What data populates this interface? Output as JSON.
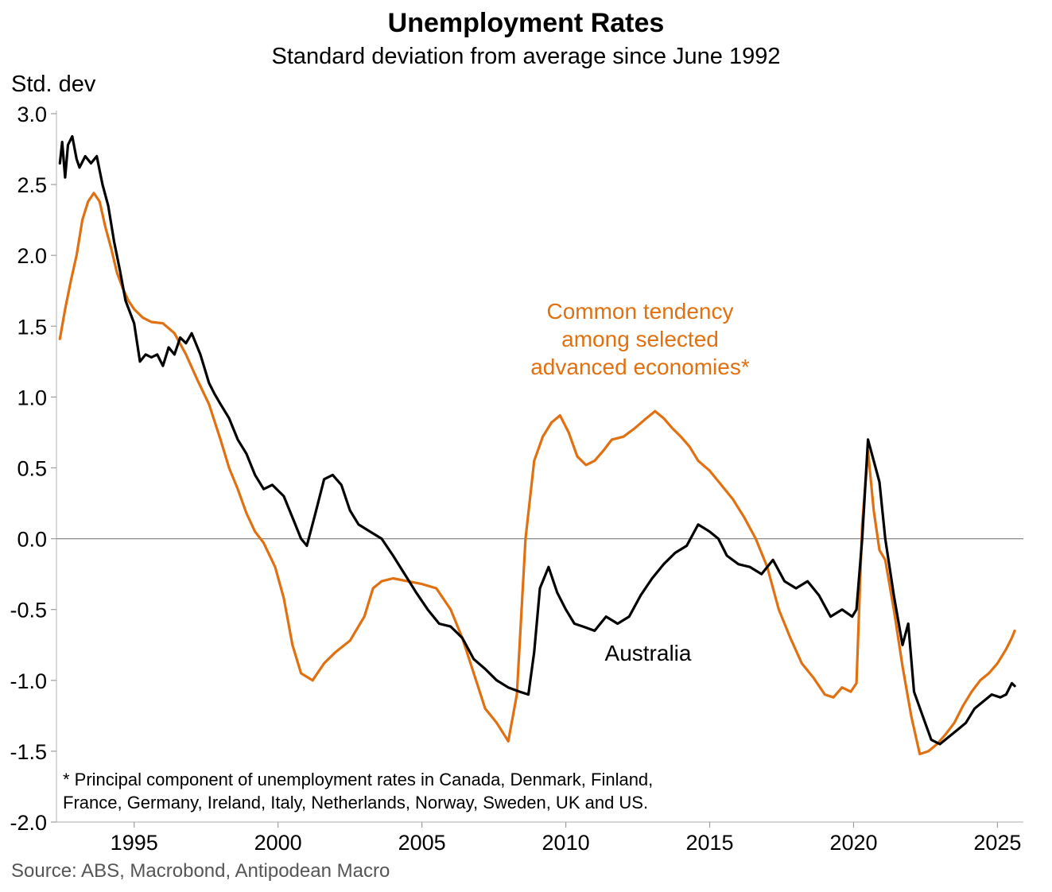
{
  "chart_data": {
    "type": "line",
    "title": "Unemployment Rates",
    "subtitle": "Standard deviation from average since June 1992",
    "ylabel": "Std. dev",
    "xlabel": "",
    "xlim": [
      1992.3,
      2025.9
    ],
    "ylim": [
      -2.0,
      3.0
    ],
    "yticks": [
      3.0,
      2.5,
      2.0,
      1.5,
      1.0,
      0.5,
      0.0,
      -0.5,
      -1.0,
      -1.5,
      -2.0
    ],
    "ytick_labels": [
      "3.0",
      "2.5",
      "2.0",
      "1.5",
      "1.0",
      "0.5",
      "0.0",
      "-0.5",
      "-1.0",
      "-1.5",
      "-2.0"
    ],
    "xticks": [
      1995,
      2000,
      2005,
      2010,
      2015,
      2020,
      2025
    ],
    "xtick_labels": [
      "1995",
      "2000",
      "2005",
      "2010",
      "2015",
      "2020",
      "2025"
    ],
    "zero_line": true,
    "series": [
      {
        "name": "Common tendency among selected advanced economies*",
        "label_lines": [
          "Common tendency",
          "among selected",
          "advanced economies*"
        ],
        "color": "#e07010",
        "x": [
          1992.42,
          1992.6,
          1992.8,
          1993.0,
          1993.2,
          1993.4,
          1993.6,
          1993.8,
          1994.0,
          1994.2,
          1994.4,
          1994.6,
          1994.8,
          1995.0,
          1995.3,
          1995.6,
          1996.0,
          1996.4,
          1996.8,
          1997.2,
          1997.6,
          1998.0,
          1998.3,
          1998.6,
          1998.9,
          1999.2,
          1999.5,
          1999.9,
          2000.2,
          2000.5,
          2000.8,
          2001.2,
          2001.6,
          2002.0,
          2002.5,
          2003.0,
          2003.3,
          2003.6,
          2004.0,
          2004.5,
          2005.0,
          2005.5,
          2006.0,
          2006.4,
          2006.8,
          2007.2,
          2007.6,
          2008.0,
          2008.3,
          2008.6,
          2008.9,
          2009.2,
          2009.5,
          2009.8,
          2010.1,
          2010.4,
          2010.7,
          2011.0,
          2011.3,
          2011.6,
          2012.0,
          2012.4,
          2012.8,
          2013.1,
          2013.4,
          2013.7,
          2014.0,
          2014.3,
          2014.6,
          2015.0,
          2015.4,
          2015.8,
          2016.2,
          2016.6,
          2017.0,
          2017.4,
          2017.8,
          2018.2,
          2018.6,
          2019.0,
          2019.3,
          2019.6,
          2019.9,
          2020.1,
          2020.3,
          2020.5,
          2020.7,
          2020.9,
          2021.1,
          2021.4,
          2021.7,
          2022.0,
          2022.3,
          2022.6,
          2022.9,
          2023.2,
          2023.5,
          2023.8,
          2024.1,
          2024.4,
          2024.7,
          2025.0,
          2025.3,
          2025.5,
          2025.6
        ],
        "values": [
          1.41,
          1.62,
          1.82,
          2.0,
          2.25,
          2.38,
          2.44,
          2.38,
          2.2,
          2.05,
          1.88,
          1.77,
          1.68,
          1.62,
          1.56,
          1.53,
          1.52,
          1.45,
          1.3,
          1.12,
          0.95,
          0.7,
          0.5,
          0.35,
          0.18,
          0.05,
          -0.03,
          -0.2,
          -0.42,
          -0.75,
          -0.95,
          -1.0,
          -0.88,
          -0.8,
          -0.72,
          -0.55,
          -0.35,
          -0.3,
          -0.28,
          -0.3,
          -0.32,
          -0.35,
          -0.5,
          -0.7,
          -0.95,
          -1.2,
          -1.3,
          -1.43,
          -1.1,
          0.0,
          0.55,
          0.72,
          0.82,
          0.87,
          0.75,
          0.58,
          0.52,
          0.55,
          0.62,
          0.7,
          0.72,
          0.78,
          0.85,
          0.9,
          0.85,
          0.78,
          0.72,
          0.65,
          0.55,
          0.48,
          0.38,
          0.28,
          0.15,
          0.0,
          -0.2,
          -0.5,
          -0.7,
          -0.88,
          -0.98,
          -1.1,
          -1.12,
          -1.05,
          -1.08,
          -1.02,
          0.1,
          0.62,
          0.2,
          -0.08,
          -0.15,
          -0.5,
          -0.9,
          -1.25,
          -1.52,
          -1.5,
          -1.45,
          -1.38,
          -1.3,
          -1.18,
          -1.08,
          -1.0,
          -0.95,
          -0.88,
          -0.78,
          -0.7,
          -0.65
        ]
      },
      {
        "name": "Australia",
        "label_lines": [
          "Australia"
        ],
        "color": "#000000",
        "x": [
          1992.42,
          1992.5,
          1992.6,
          1992.7,
          1992.85,
          1993.0,
          1993.1,
          1993.3,
          1993.5,
          1993.7,
          1993.9,
          1994.1,
          1994.3,
          1994.5,
          1994.7,
          1995.0,
          1995.2,
          1995.4,
          1995.6,
          1995.8,
          1996.0,
          1996.2,
          1996.4,
          1996.6,
          1996.8,
          1997.0,
          1997.3,
          1997.6,
          1997.8,
          1998.0,
          1998.3,
          1998.6,
          1998.9,
          1999.2,
          1999.5,
          1999.8,
          2000.2,
          2000.5,
          2000.8,
          2001.0,
          2001.3,
          2001.6,
          2001.9,
          2002.2,
          2002.5,
          2002.8,
          2003.2,
          2003.6,
          2004.0,
          2004.4,
          2004.8,
          2005.2,
          2005.6,
          2006.0,
          2006.4,
          2006.8,
          2007.2,
          2007.6,
          2008.0,
          2008.4,
          2008.7,
          2008.9,
          2009.1,
          2009.4,
          2009.7,
          2010.0,
          2010.3,
          2010.6,
          2011.0,
          2011.4,
          2011.8,
          2012.2,
          2012.6,
          2013.0,
          2013.4,
          2013.8,
          2014.2,
          2014.6,
          2015.0,
          2015.3,
          2015.6,
          2016.0,
          2016.4,
          2016.8,
          2017.2,
          2017.6,
          2018.0,
          2018.4,
          2018.8,
          2019.2,
          2019.6,
          2019.95,
          2020.1,
          2020.3,
          2020.5,
          2020.7,
          2020.9,
          2021.1,
          2021.4,
          2021.7,
          2021.9,
          2022.1,
          2022.4,
          2022.7,
          2023.0,
          2023.3,
          2023.6,
          2023.9,
          2024.2,
          2024.5,
          2024.8,
          2025.1,
          2025.3,
          2025.5,
          2025.6
        ],
        "values": [
          2.65,
          2.8,
          2.55,
          2.78,
          2.84,
          2.68,
          2.62,
          2.7,
          2.65,
          2.7,
          2.5,
          2.35,
          2.1,
          1.9,
          1.68,
          1.52,
          1.25,
          1.3,
          1.28,
          1.3,
          1.22,
          1.35,
          1.3,
          1.42,
          1.38,
          1.45,
          1.3,
          1.1,
          1.02,
          0.95,
          0.85,
          0.7,
          0.6,
          0.45,
          0.35,
          0.38,
          0.3,
          0.15,
          0.0,
          -0.05,
          0.18,
          0.42,
          0.45,
          0.38,
          0.2,
          0.1,
          0.05,
          0.0,
          -0.12,
          -0.25,
          -0.38,
          -0.5,
          -0.6,
          -0.62,
          -0.7,
          -0.85,
          -0.92,
          -1.0,
          -1.05,
          -1.08,
          -1.1,
          -0.8,
          -0.35,
          -0.2,
          -0.38,
          -0.5,
          -0.6,
          -0.62,
          -0.65,
          -0.55,
          -0.6,
          -0.55,
          -0.4,
          -0.28,
          -0.18,
          -0.1,
          -0.05,
          0.1,
          0.05,
          0.0,
          -0.12,
          -0.18,
          -0.2,
          -0.25,
          -0.15,
          -0.3,
          -0.35,
          -0.3,
          -0.4,
          -0.55,
          -0.5,
          -0.55,
          -0.5,
          0.0,
          0.7,
          0.55,
          0.4,
          0.0,
          -0.4,
          -0.75,
          -0.6,
          -1.08,
          -1.25,
          -1.42,
          -1.45,
          -1.4,
          -1.35,
          -1.3,
          -1.2,
          -1.15,
          -1.1,
          -1.12,
          -1.1,
          -1.02,
          -1.04
        ]
      }
    ],
    "annotations": {
      "footnote_lines": [
        "* Principal component of unemployment rates in Canada, Denmark, Finland,",
        "France, Germany, Ireland, Italy, Netherlands, Norway, Sweden, UK and US."
      ],
      "source": "Source: ABS, Macrobond, Antipodean Macro"
    }
  }
}
